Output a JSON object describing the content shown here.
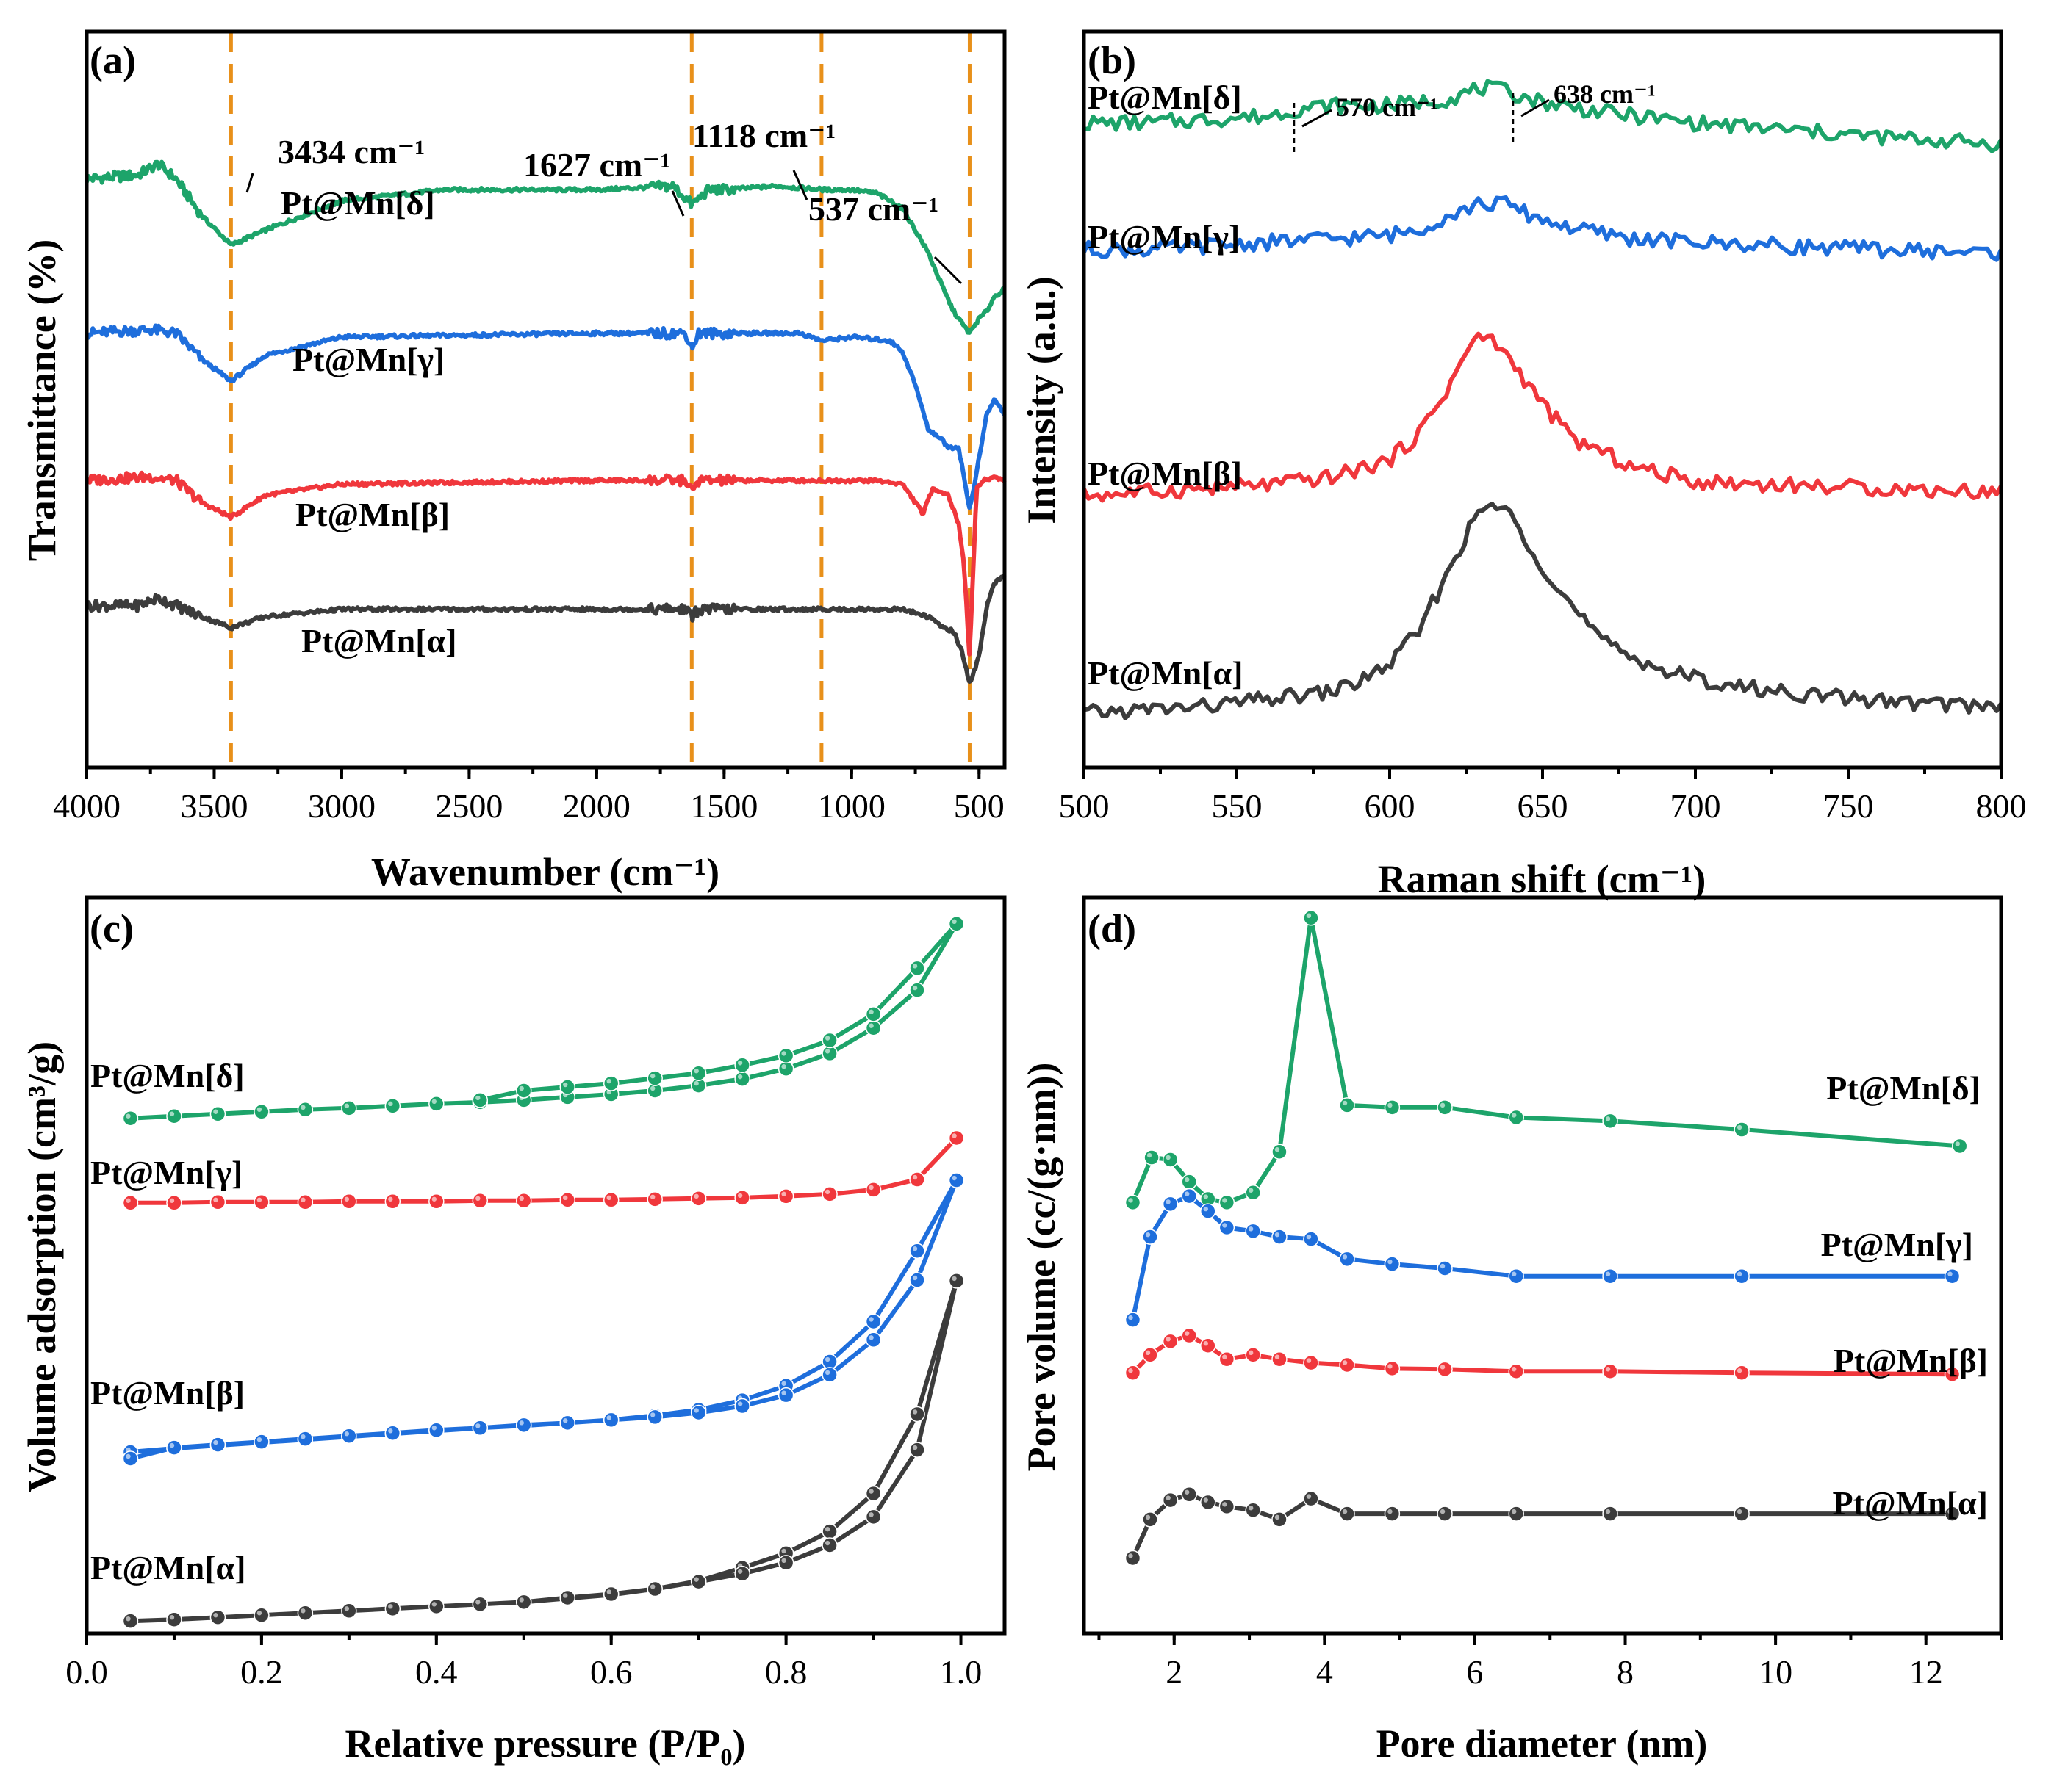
{
  "colors": {
    "alpha": "#3c3c3c",
    "beta": "#f0373c",
    "gamma": "#1e6edc",
    "delta": "#1da46a",
    "ref": "#e8901a"
  },
  "chart_data": [
    {
      "id": "a",
      "type": "line",
      "panel_label": "(a)",
      "xlabel": "Wavenumber (cm⁻¹)",
      "ylabel": "Transmittance (%)",
      "xlim": [
        4000,
        400
      ],
      "xticks": [
        "4000",
        "3500",
        "3000",
        "2500",
        "2000",
        "1500",
        "1000",
        "500"
      ],
      "xtick_values": [
        4000,
        3500,
        3000,
        2500,
        2000,
        1500,
        1000,
        500
      ],
      "ylim": [
        0,
        100
      ],
      "y_ticks_shown": false,
      "reference_lines": [
        3434,
        1627,
        1118,
        537
      ],
      "annotations": [
        {
          "text": "3434 cm⁻¹",
          "x": 3434
        },
        {
          "text": "1627 cm⁻¹",
          "x": 1627
        },
        {
          "text": "1118 cm⁻¹",
          "x": 1118
        },
        {
          "text": "537 cm⁻¹",
          "x": 537
        }
      ],
      "series": [
        {
          "name": "Pt@Mn[δ]",
          "color_key": "delta",
          "x": [
            4000,
            3800,
            3720,
            3650,
            3550,
            3434,
            3300,
            3000,
            2600,
            2000,
            1700,
            1627,
            1560,
            1500,
            1300,
            1100,
            1000,
            900,
            800,
            700,
            640,
            600,
            560,
            537,
            500,
            470,
            440,
            400
          ],
          "y": [
            80,
            80.5,
            82,
            80,
            75,
            71,
            73,
            77,
            78.5,
            78.5,
            79,
            76.5,
            78.5,
            78.5,
            79,
            78.5,
            78.5,
            78,
            76,
            70,
            65,
            62,
            60,
            59,
            61,
            62,
            64,
            65
          ]
        },
        {
          "name": "Pt@Mn[γ]",
          "color_key": "gamma",
          "x": [
            4000,
            3750,
            3650,
            3550,
            3434,
            3300,
            3000,
            2000,
            1650,
            1627,
            1600,
            1500,
            1200,
            1118,
            1000,
            850,
            800,
            750,
            700,
            660,
            620,
            580,
            537,
            500,
            470,
            440,
            400
          ],
          "y": [
            59,
            59.5,
            59,
            55.5,
            52.5,
            56,
            58.5,
            59,
            59,
            57,
            59,
            59,
            59,
            58,
            58.5,
            58,
            56.5,
            52,
            46,
            45,
            43.5,
            43.5,
            35,
            42,
            48,
            50,
            48
          ]
        },
        {
          "name": "Pt@Mn[β]",
          "color_key": "beta",
          "x": [
            4000,
            3750,
            3650,
            3550,
            3434,
            3300,
            3000,
            2000,
            1650,
            1627,
            1600,
            1500,
            1000,
            900,
            800,
            750,
            720,
            680,
            620,
            580,
            560,
            537,
            510,
            480,
            440,
            400
          ],
          "y": [
            39,
            39.5,
            39,
            36,
            34,
            37,
            38.5,
            39,
            39,
            37.5,
            39,
            39,
            39,
            39,
            38.5,
            36,
            34.5,
            38,
            37,
            33,
            28,
            15,
            38,
            39,
            39.5,
            39
          ]
        },
        {
          "name": "Pt@Mn[α]",
          "color_key": "alpha",
          "x": [
            4000,
            3800,
            3720,
            3650,
            3550,
            3434,
            3300,
            3000,
            2000,
            1650,
            1627,
            1600,
            1500,
            1000,
            800,
            700,
            640,
            600,
            570,
            537,
            500,
            470,
            440,
            400
          ],
          "y": [
            22,
            22,
            23,
            22,
            20.5,
            19,
            20.5,
            21.5,
            21.5,
            21.5,
            20.5,
            21.5,
            21.5,
            21.5,
            21.5,
            20.5,
            19,
            18.5,
            16,
            11.5,
            15,
            22,
            25,
            26
          ]
        }
      ]
    },
    {
      "id": "b",
      "type": "line",
      "panel_label": "(b)",
      "xlabel": "Raman shift (cm⁻¹)",
      "ylabel": "Intensity (a.u.)",
      "xlim": [
        500,
        800
      ],
      "xticks": [
        "500",
        "550",
        "600",
        "650",
        "700",
        "750",
        "800"
      ],
      "xtick_values": [
        500,
        550,
        600,
        650,
        700,
        750,
        800
      ],
      "ylim": [
        0,
        100
      ],
      "y_ticks_shown": false,
      "peak_markers": [
        {
          "text": "570 cm⁻¹",
          "x": 570
        },
        {
          "text": "638 cm⁻¹",
          "x": 638
        }
      ],
      "series": [
        {
          "name": "Pt@Mn[δ]",
          "color_key": "delta",
          "x": [
            500,
            520,
            540,
            560,
            570,
            580,
            600,
            620,
            630,
            638,
            650,
            670,
            700,
            730,
            760,
            800
          ],
          "y": [
            87,
            87,
            87.5,
            88,
            89,
            89.5,
            89.5,
            90.5,
            92,
            91.5,
            90,
            88.5,
            87,
            86,
            85,
            84
          ]
        },
        {
          "name": "Pt@Mn[γ]",
          "color_key": "gamma",
          "x": [
            500,
            520,
            540,
            560,
            580,
            600,
            610,
            620,
            630,
            638,
            645,
            660,
            680,
            700,
            730,
            760,
            800
          ],
          "y": [
            69,
            69,
            69.5,
            70,
            70.5,
            71,
            72,
            74,
            75.5,
            75.5,
            74,
            72,
            70.5,
            70,
            69.5,
            69,
            68.5
          ]
        },
        {
          "name": "Pt@Mn[β]",
          "color_key": "beta",
          "x": [
            500,
            520,
            540,
            560,
            580,
            600,
            610,
            620,
            627,
            633,
            640,
            650,
            660,
            680,
            700,
            730,
            760,
            800
          ],
          "y": [
            34,
            34.5,
            35,
            35.5,
            36.5,
            39,
            43,
            50,
            56,
            56.5,
            53,
            47,
            42,
            38,
            36,
            35.5,
            35,
            34.5
          ]
        },
        {
          "name": "Pt@Mn[α]",
          "color_key": "alpha",
          "x": [
            500,
            520,
            540,
            560,
            580,
            590,
            600,
            610,
            620,
            627,
            633,
            640,
            650,
            660,
            670,
            690,
            710,
            740,
            770,
            800
          ],
          "y": [
            3,
            3.5,
            4,
            5,
            6,
            7.5,
            10,
            15,
            24,
            30,
            33,
            31,
            24,
            18,
            13,
            9,
            7,
            5.5,
            4.5,
            4
          ]
        }
      ],
      "series_label_text": [
        "Pt@Mn[δ]",
        "Pt@Mn[γ]",
        "Pt@Mn[β]",
        "Pt@Mn[α]"
      ]
    },
    {
      "id": "c",
      "type": "line",
      "markers": true,
      "panel_label": "(c)",
      "xlabel": "Relative pressure (P/P₀)",
      "ylabel": "Volume adsorption (cm³/g)",
      "xlim": [
        0,
        1.05
      ],
      "xticks": [
        "0.0",
        "0.2",
        "0.4",
        "0.6",
        "0.8",
        "1.0"
      ],
      "xtick_values": [
        0,
        0.2,
        0.4,
        0.6,
        0.8,
        1.0
      ],
      "ylim": [
        0,
        100
      ],
      "y_ticks_shown": false,
      "series": [
        {
          "name": "Pt@Mn[δ]",
          "color_key": "delta",
          "x": [
            0.05,
            0.1,
            0.15,
            0.2,
            0.25,
            0.3,
            0.35,
            0.4,
            0.45,
            0.5,
            0.55,
            0.6,
            0.65,
            0.7,
            0.75,
            0.8,
            0.85,
            0.9,
            0.95,
            0.995,
            0.95,
            0.9,
            0.85,
            0.8,
            0.75,
            0.7,
            0.65,
            0.6,
            0.55,
            0.5,
            0.45
          ],
          "y": [
            71.3,
            71.6,
            71.9,
            72.2,
            72.5,
            72.7,
            73.0,
            73.3,
            73.5,
            73.8,
            74.2,
            74.6,
            75.1,
            75.8,
            76.7,
            78.1,
            80.2,
            83.7,
            88.9,
            98.0,
            91.9,
            85.6,
            82.0,
            79.9,
            78.6,
            77.5,
            76.8,
            76.1,
            75.6,
            75.1,
            73.8
          ]
        },
        {
          "name": "Pt@Mn[γ]",
          "color_key": "beta",
          "x": [
            0.05,
            0.1,
            0.15,
            0.2,
            0.25,
            0.3,
            0.35,
            0.4,
            0.45,
            0.5,
            0.55,
            0.6,
            0.65,
            0.7,
            0.75,
            0.8,
            0.85,
            0.9,
            0.95,
            0.995
          ],
          "y": [
            59.7,
            59.7,
            59.8,
            59.8,
            59.8,
            59.9,
            59.9,
            59.9,
            60.0,
            60.0,
            60.1,
            60.1,
            60.2,
            60.3,
            60.4,
            60.6,
            60.9,
            61.5,
            62.9,
            68.6
          ]
        },
        {
          "name": "Pt@Mn[β]",
          "color_key": "gamma",
          "x": [
            0.05,
            0.1,
            0.15,
            0.2,
            0.25,
            0.3,
            0.35,
            0.4,
            0.45,
            0.5,
            0.55,
            0.6,
            0.65,
            0.7,
            0.75,
            0.8,
            0.85,
            0.9,
            0.95,
            0.995,
            0.95,
            0.9,
            0.85,
            0.8,
            0.75,
            0.7,
            0.65,
            0.6,
            0.55,
            0.5,
            0.45,
            0.4,
            0.35,
            0.3,
            0.25,
            0.2,
            0.15,
            0.1,
            0.05
          ],
          "y": [
            25.5,
            26.0,
            26.4,
            26.8,
            27.2,
            27.6,
            28.0,
            28.4,
            28.8,
            29.1,
            29.5,
            29.9,
            30.5,
            31.3,
            32.6,
            34.6,
            37.9,
            43.4,
            53.1,
            62.8,
            49.1,
            40.9,
            36.1,
            33.3,
            31.8,
            30.9,
            30.3,
            29.9,
            29.5,
            29.2,
            28.8,
            28.5,
            28.1,
            27.7,
            27.3,
            26.9,
            26.5,
            26.1,
            24.6
          ]
        },
        {
          "name": "Pt@Mn[α]",
          "color_key": "alpha",
          "x": [
            0.05,
            0.1,
            0.15,
            0.2,
            0.25,
            0.3,
            0.35,
            0.4,
            0.45,
            0.5,
            0.55,
            0.6,
            0.65,
            0.7,
            0.75,
            0.8,
            0.85,
            0.9,
            0.95,
            0.995,
            0.95,
            0.9,
            0.85,
            0.8,
            0.75,
            0.7,
            0.65,
            0.6,
            0.55,
            0.5,
            0.45
          ],
          "y": [
            2.3,
            2.5,
            2.8,
            3.1,
            3.4,
            3.7,
            4.0,
            4.3,
            4.6,
            4.9,
            5.4,
            5.9,
            6.7,
            7.8,
            9.6,
            11.6,
            14.6,
            19.8,
            30.7,
            49.0,
            25.8,
            16.6,
            12.7,
            10.3,
            8.8,
            7.7,
            6.7,
            6.0,
            5.5,
            4.9,
            4.6
          ]
        }
      ]
    },
    {
      "id": "d",
      "type": "line",
      "markers": true,
      "panel_label": "(d)",
      "xlabel": "Pore diameter (nm)",
      "ylabel": "Pore volume (cc/(g·nm))",
      "xlim": [
        0.8,
        13
      ],
      "xticks": [
        "2",
        "4",
        "6",
        "8",
        "10",
        "12"
      ],
      "xtick_values": [
        2,
        4,
        6,
        8,
        10,
        12
      ],
      "ylim": [
        0,
        100
      ],
      "y_ticks_shown": false,
      "series": [
        {
          "name": "Pt@Mn[δ]",
          "color_key": "delta",
          "x": [
            1.45,
            1.7,
            1.95,
            2.2,
            2.45,
            2.7,
            3.05,
            3.4,
            3.82,
            4.3,
            4.9,
            5.6,
            6.55,
            7.8,
            9.55,
            12.45
          ],
          "y": [
            59.2,
            65.5,
            65.2,
            62.1,
            59.7,
            59.2,
            60.6,
            66.3,
            99.0,
            72.8,
            72.5,
            72.5,
            71.1,
            70.6,
            69.4,
            67.1
          ]
        },
        {
          "name": "Pt@Mn[γ]",
          "color_key": "gamma",
          "x": [
            1.45,
            1.68,
            1.95,
            2.2,
            2.45,
            2.7,
            3.05,
            3.4,
            3.82,
            4.3,
            4.9,
            5.6,
            6.55,
            7.8,
            9.55,
            12.35
          ],
          "y": [
            42.8,
            54.4,
            59.0,
            60.1,
            58.0,
            55.7,
            55.2,
            54.4,
            54.1,
            51.3,
            50.6,
            50.0,
            48.9,
            48.9,
            48.9,
            48.9
          ]
        },
        {
          "name": "Pt@Mn[β]",
          "color_key": "beta",
          "x": [
            1.45,
            1.68,
            1.95,
            2.2,
            2.45,
            2.7,
            3.05,
            3.4,
            3.82,
            4.3,
            4.9,
            5.6,
            6.55,
            7.8,
            9.55,
            12.35
          ],
          "y": [
            35.4,
            37.9,
            39.8,
            40.6,
            39.2,
            37.3,
            37.9,
            37.3,
            36.8,
            36.5,
            36.0,
            35.9,
            35.6,
            35.6,
            35.4,
            35.2
          ]
        },
        {
          "name": "Pt@Mn[α]",
          "color_key": "alpha",
          "x": [
            1.45,
            1.68,
            1.95,
            2.2,
            2.45,
            2.7,
            3.05,
            3.4,
            3.82,
            4.3,
            4.9,
            5.6,
            6.55,
            7.8,
            9.55,
            12.35
          ],
          "y": [
            9.5,
            14.9,
            17.6,
            18.4,
            17.3,
            16.7,
            16.2,
            14.9,
            17.8,
            15.7,
            15.7,
            15.7,
            15.7,
            15.7,
            15.7,
            15.7
          ]
        }
      ]
    }
  ]
}
